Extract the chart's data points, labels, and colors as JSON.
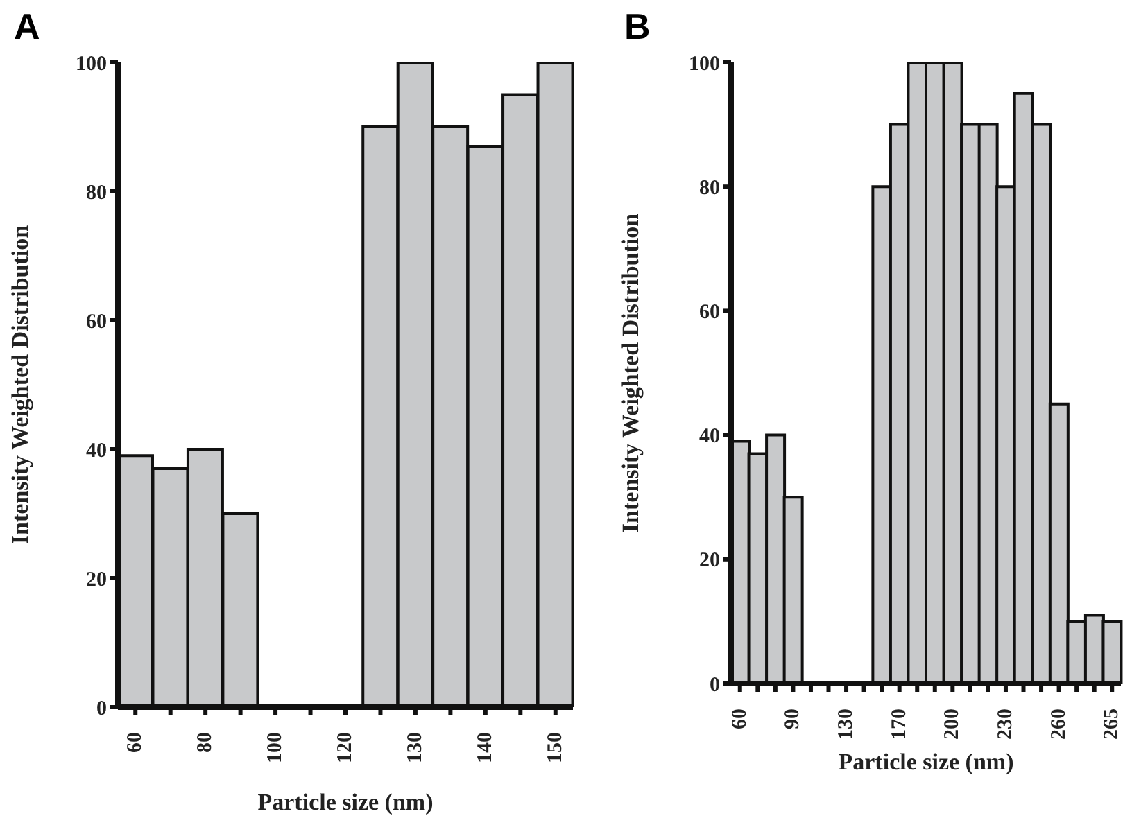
{
  "chart_data": [
    {
      "type": "bar",
      "title": "A",
      "xlabel": "Particle size (nm)",
      "ylabel": "Intensity Weighted Distribution",
      "categories": [
        "60",
        null,
        "80",
        null,
        "100",
        null,
        "120",
        null,
        "130",
        null,
        "140",
        null,
        "150"
      ],
      "values": [
        39,
        37,
        40,
        30,
        0,
        0,
        0,
        90,
        100,
        90,
        87,
        95,
        100
      ],
      "color": "#c8c9cb",
      "ylim": [
        0,
        100
      ],
      "yticks": [
        0,
        20,
        40,
        60,
        80,
        100
      ]
    },
    {
      "type": "bar",
      "title": "B",
      "xlabel": "Particle size (nm)",
      "ylabel": "Intensity Weighted Distribution",
      "categories": [
        "60",
        null,
        null,
        "90",
        null,
        null,
        "130",
        null,
        null,
        "170",
        null,
        null,
        "200",
        null,
        null,
        "230",
        null,
        null,
        "260",
        null,
        null,
        "265"
      ],
      "values": [
        39,
        37,
        40,
        30,
        0,
        0,
        0,
        0,
        80,
        90,
        100,
        100,
        100,
        90,
        90,
        80,
        95,
        90,
        45,
        10,
        11,
        10
      ],
      "color": "#c8c9cb",
      "ylim": [
        0,
        100
      ],
      "yticks": [
        0,
        20,
        40,
        60,
        80,
        100
      ]
    }
  ]
}
